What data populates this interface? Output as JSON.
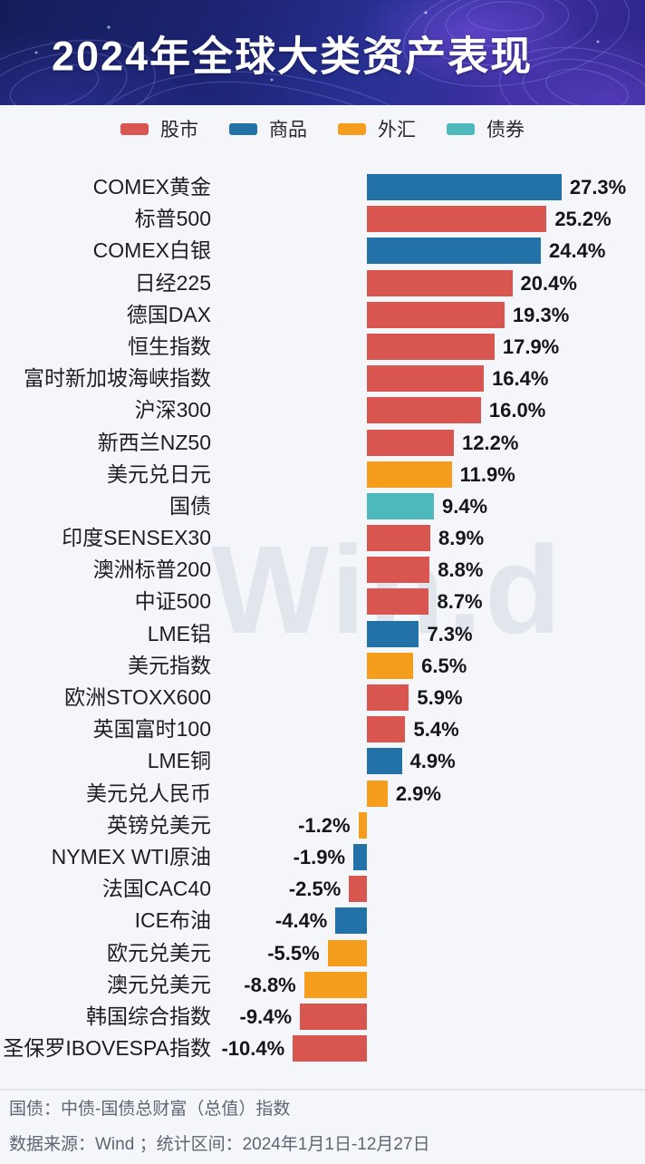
{
  "header": {
    "title": "2024年全球大类资产表现"
  },
  "legend": {
    "items": [
      {
        "label": "股市",
        "color": "#d95550"
      },
      {
        "label": "商品",
        "color": "#2272a8"
      },
      {
        "label": "外汇",
        "color": "#f59d1c"
      },
      {
        "label": "债券",
        "color": "#4db9bd"
      }
    ]
  },
  "watermark": "Win.d",
  "chart_data": {
    "type": "bar",
    "orientation": "horizontal",
    "title": "2024年全球大类资产表现",
    "value_unit": "%",
    "xlim": [
      -12,
      29
    ],
    "legend_position": "top",
    "grid": false,
    "rows": [
      {
        "label": "COMEX黄金",
        "value": 27.3,
        "display": "27.3%",
        "category": "商品"
      },
      {
        "label": "标普500",
        "value": 25.2,
        "display": "25.2%",
        "category": "股市"
      },
      {
        "label": "COMEX白银",
        "value": 24.4,
        "display": "24.4%",
        "category": "商品"
      },
      {
        "label": "日经225",
        "value": 20.4,
        "display": "20.4%",
        "category": "股市"
      },
      {
        "label": "德国DAX",
        "value": 19.3,
        "display": "19.3%",
        "category": "股市"
      },
      {
        "label": "恒生指数",
        "value": 17.9,
        "display": "17.9%",
        "category": "股市"
      },
      {
        "label": "富时新加坡海峡指数",
        "value": 16.4,
        "display": "16.4%",
        "category": "股市"
      },
      {
        "label": "沪深300",
        "value": 16.0,
        "display": "16.0%",
        "category": "股市"
      },
      {
        "label": "新西兰NZ50",
        "value": 12.2,
        "display": "12.2%",
        "category": "股市"
      },
      {
        "label": "美元兑日元",
        "value": 11.9,
        "display": "11.9%",
        "category": "外汇"
      },
      {
        "label": "国债",
        "value": 9.4,
        "display": "9.4%",
        "category": "债券"
      },
      {
        "label": "印度SENSEX30",
        "value": 8.9,
        "display": "8.9%",
        "category": "股市"
      },
      {
        "label": "澳洲标普200",
        "value": 8.8,
        "display": "8.8%",
        "category": "股市"
      },
      {
        "label": "中证500",
        "value": 8.7,
        "display": "8.7%",
        "category": "股市"
      },
      {
        "label": "LME铝",
        "value": 7.3,
        "display": "7.3%",
        "category": "商品"
      },
      {
        "label": "美元指数",
        "value": 6.5,
        "display": "6.5%",
        "category": "外汇"
      },
      {
        "label": "欧洲STOXX600",
        "value": 5.9,
        "display": "5.9%",
        "category": "股市"
      },
      {
        "label": "英国富时100",
        "value": 5.4,
        "display": "5.4%",
        "category": "股市"
      },
      {
        "label": "LME铜",
        "value": 4.9,
        "display": "4.9%",
        "category": "商品"
      },
      {
        "label": "美元兑人民币",
        "value": 2.9,
        "display": "2.9%",
        "category": "外汇"
      },
      {
        "label": "英镑兑美元",
        "value": -1.2,
        "display": "-1.2%",
        "category": "外汇"
      },
      {
        "label": "NYMEX WTI原油",
        "value": -1.9,
        "display": "-1.9%",
        "category": "商品"
      },
      {
        "label": "法国CAC40",
        "value": -2.5,
        "display": "-2.5%",
        "category": "股市"
      },
      {
        "label": "ICE布油",
        "value": -4.4,
        "display": "-4.4%",
        "category": "商品"
      },
      {
        "label": "欧元兑美元",
        "value": -5.5,
        "display": "-5.5%",
        "category": "外汇"
      },
      {
        "label": "澳元兑美元",
        "value": -8.8,
        "display": "-8.8%",
        "category": "外汇"
      },
      {
        "label": "韩国综合指数",
        "value": -9.4,
        "display": "-9.4%",
        "category": "股市"
      },
      {
        "label": "圣保罗IBOVESPA指数",
        "value": -10.4,
        "display": "-10.4%",
        "category": "股市"
      }
    ]
  },
  "footer": {
    "note": "国债：中债-国债总财富（总值）指数",
    "source": "数据来源：Wind ；统计区间：2024年1月1日-12月27日"
  }
}
